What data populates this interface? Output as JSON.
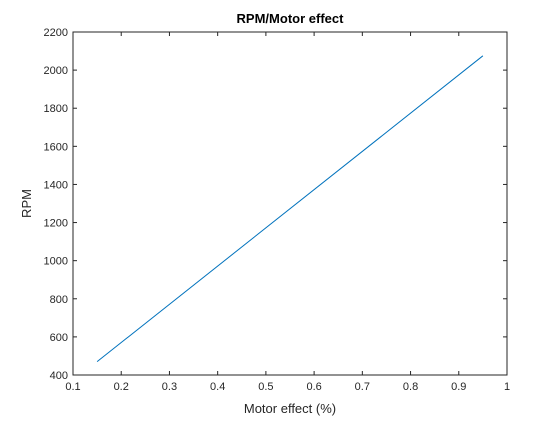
{
  "chart_data": {
    "type": "line",
    "title": "RPM/Motor effect",
    "xlabel": "Motor effect (%)",
    "ylabel": "RPM",
    "xlim": [
      0.1,
      1
    ],
    "ylim": [
      400,
      2200
    ],
    "grid": false,
    "x_ticks": [
      0.1,
      0.2,
      0.3,
      0.4,
      0.5,
      0.6,
      0.7,
      0.8,
      0.9,
      1
    ],
    "x_tick_labels": [
      "0.1",
      "0.2",
      "0.3",
      "0.4",
      "0.5",
      "0.6",
      "0.7",
      "0.8",
      "0.9",
      "1"
    ],
    "y_ticks": [
      400,
      600,
      800,
      1000,
      1200,
      1400,
      1600,
      1800,
      2000,
      2200
    ],
    "y_tick_labels": [
      "400",
      "600",
      "800",
      "1000",
      "1200",
      "1400",
      "1600",
      "1800",
      "2000",
      "2200"
    ],
    "series": [
      {
        "color": "#0072bd",
        "x": [
          0.15,
          0.95
        ],
        "y": [
          470,
          2075
        ]
      }
    ]
  }
}
